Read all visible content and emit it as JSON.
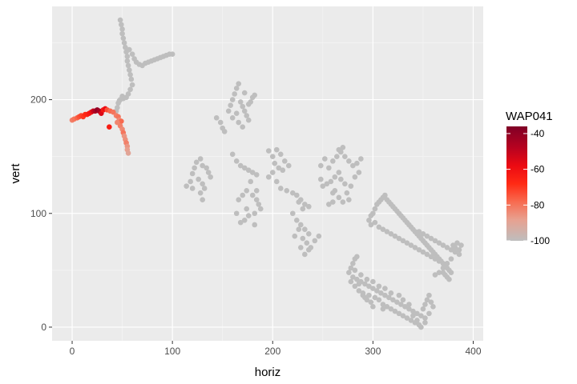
{
  "chart_data": {
    "type": "scatter",
    "xlabel": "horiz",
    "ylabel": "vert",
    "xlim": [
      -20,
      410
    ],
    "ylim": [
      -12,
      282
    ],
    "x_ticks": [
      0,
      100,
      200,
      300,
      400
    ],
    "y_ticks": [
      0,
      100,
      200
    ],
    "x_tick_labels": [
      "0",
      "100",
      "200",
      "300",
      "400"
    ],
    "y_tick_labels": [
      "0",
      "100",
      "200"
    ],
    "grid": true,
    "legend": {
      "title": "WAP041",
      "position": "right",
      "min": -100,
      "max": -36,
      "ticks": [
        -40,
        -60,
        -80,
        -100
      ],
      "tick_labels": [
        "-40",
        "-60",
        "-80",
        "-100"
      ],
      "gradient": [
        {
          "value": -100,
          "color": "#bebebe"
        },
        {
          "value": -88,
          "color": "#e8a08f"
        },
        {
          "value": -78,
          "color": "#f86a4f"
        },
        {
          "value": -68,
          "color": "#ff2a14"
        },
        {
          "value": -58,
          "color": "#ec0a12"
        },
        {
          "value": -48,
          "color": "#b80220"
        },
        {
          "value": -36,
          "color": "#800026"
        }
      ]
    },
    "colors": {
      "panel": "#ebebeb",
      "grid_major": "#ffffff",
      "grid_minor": "#f5f5f5",
      "missing_point": "#bebebe"
    },
    "signal_points": [
      {
        "x": 0,
        "y": 182,
        "value": -82
      },
      {
        "x": 2,
        "y": 183,
        "value": -80
      },
      {
        "x": 5,
        "y": 184,
        "value": -77
      },
      {
        "x": 7,
        "y": 185,
        "value": -74
      },
      {
        "x": 9,
        "y": 186,
        "value": -72
      },
      {
        "x": 11,
        "y": 185,
        "value": -70
      },
      {
        "x": 13,
        "y": 187,
        "value": -68
      },
      {
        "x": 15,
        "y": 187,
        "value": -66
      },
      {
        "x": 17,
        "y": 188,
        "value": -63
      },
      {
        "x": 19,
        "y": 189,
        "value": -60
      },
      {
        "x": 21,
        "y": 190,
        "value": -52
      },
      {
        "x": 23,
        "y": 190,
        "value": -46
      },
      {
        "x": 25,
        "y": 191,
        "value": -40
      },
      {
        "x": 27,
        "y": 190,
        "value": -44
      },
      {
        "x": 29,
        "y": 188,
        "value": -55
      },
      {
        "x": 31,
        "y": 191,
        "value": -62
      },
      {
        "x": 33,
        "y": 192,
        "value": -58
      },
      {
        "x": 35,
        "y": 191,
        "value": -74
      },
      {
        "x": 38,
        "y": 190,
        "value": -78
      },
      {
        "x": 41,
        "y": 189,
        "value": -80
      },
      {
        "x": 37,
        "y": 176,
        "value": -64
      },
      {
        "x": 44,
        "y": 186,
        "value": -82
      },
      {
        "x": 46,
        "y": 185,
        "value": -80
      },
      {
        "x": 47,
        "y": 182,
        "value": -84
      },
      {
        "x": 49,
        "y": 181,
        "value": -78
      },
      {
        "x": 45,
        "y": 180,
        "value": -83
      },
      {
        "x": 48,
        "y": 177,
        "value": -82
      },
      {
        "x": 50,
        "y": 174,
        "value": -84
      },
      {
        "x": 51,
        "y": 171,
        "value": -80
      },
      {
        "x": 52,
        "y": 168,
        "value": -86
      },
      {
        "x": 53,
        "y": 165,
        "value": -85
      },
      {
        "x": 54,
        "y": 162,
        "value": -82
      },
      {
        "x": 55,
        "y": 159,
        "value": -86
      },
      {
        "x": 55,
        "y": 156,
        "value": -88
      },
      {
        "x": 56,
        "y": 153,
        "value": -90
      }
    ],
    "missing_points": [
      [
        48,
        270
      ],
      [
        49,
        266
      ],
      [
        50,
        262
      ],
      [
        50,
        258
      ],
      [
        51,
        254
      ],
      [
        52,
        250
      ],
      [
        53,
        246
      ],
      [
        54,
        242
      ],
      [
        55,
        238
      ],
      [
        55,
        234
      ],
      [
        56,
        230
      ],
      [
        57,
        226
      ],
      [
        58,
        222
      ],
      [
        59,
        218
      ],
      [
        57,
        244
      ],
      [
        60,
        240
      ],
      [
        62,
        236
      ],
      [
        64,
        233
      ],
      [
        67,
        231
      ],
      [
        70,
        230
      ],
      [
        73,
        232
      ],
      [
        76,
        233
      ],
      [
        79,
        234
      ],
      [
        82,
        235
      ],
      [
        85,
        236
      ],
      [
        88,
        237
      ],
      [
        91,
        238
      ],
      [
        94,
        239
      ],
      [
        97,
        240
      ],
      [
        100,
        240
      ],
      [
        60,
        213
      ],
      [
        58,
        209
      ],
      [
        56,
        205
      ],
      [
        54,
        202
      ],
      [
        51,
        201
      ],
      [
        48,
        200
      ],
      [
        46,
        197
      ],
      [
        45,
        193
      ],
      [
        44,
        190
      ],
      [
        47,
        199
      ],
      [
        50,
        203
      ],
      [
        144,
        184
      ],
      [
        148,
        180
      ],
      [
        150,
        175
      ],
      [
        152,
        172
      ],
      [
        156,
        190
      ],
      [
        158,
        195
      ],
      [
        160,
        200
      ],
      [
        162,
        205
      ],
      [
        164,
        210
      ],
      [
        166,
        214
      ],
      [
        168,
        198
      ],
      [
        170,
        194
      ],
      [
        172,
        190
      ],
      [
        174,
        186
      ],
      [
        176,
        182
      ],
      [
        178,
        198
      ],
      [
        180,
        202
      ],
      [
        182,
        204
      ],
      [
        166,
        180
      ],
      [
        170,
        176
      ],
      [
        164,
        188
      ],
      [
        160,
        184
      ],
      [
        172,
        206
      ],
      [
        176,
        196
      ],
      [
        120,
        135
      ],
      [
        122,
        140
      ],
      [
        124,
        145
      ],
      [
        128,
        148
      ],
      [
        130,
        142
      ],
      [
        134,
        140
      ],
      [
        136,
        136
      ],
      [
        138,
        132
      ],
      [
        126,
        130
      ],
      [
        130,
        126
      ],
      [
        132,
        122
      ],
      [
        128,
        118
      ],
      [
        118,
        128
      ],
      [
        114,
        124
      ],
      [
        120,
        122
      ],
      [
        130,
        112
      ],
      [
        160,
        152
      ],
      [
        164,
        146
      ],
      [
        168,
        142
      ],
      [
        172,
        140
      ],
      [
        176,
        138
      ],
      [
        180,
        136
      ],
      [
        184,
        134
      ],
      [
        178,
        128
      ],
      [
        174,
        120
      ],
      [
        170,
        116
      ],
      [
        166,
        112
      ],
      [
        180,
        116
      ],
      [
        184,
        112
      ],
      [
        186,
        108
      ],
      [
        188,
        104
      ],
      [
        182,
        100
      ],
      [
        176,
        98
      ],
      [
        172,
        94
      ],
      [
        168,
        92
      ],
      [
        174,
        104
      ],
      [
        164,
        100
      ],
      [
        184,
        120
      ],
      [
        182,
        90
      ],
      [
        196,
        155
      ],
      [
        200,
        150
      ],
      [
        204,
        156
      ],
      [
        208,
        152
      ],
      [
        212,
        146
      ],
      [
        216,
        142
      ],
      [
        202,
        144
      ],
      [
        206,
        140
      ],
      [
        210,
        138
      ],
      [
        200,
        136
      ],
      [
        196,
        132
      ],
      [
        204,
        128
      ],
      [
        208,
        122
      ],
      [
        214,
        120
      ],
      [
        220,
        118
      ],
      [
        224,
        116
      ],
      [
        228,
        112
      ],
      [
        232,
        108
      ],
      [
        236,
        106
      ],
      [
        230,
        104
      ],
      [
        226,
        110
      ],
      [
        220,
        100
      ],
      [
        224,
        94
      ],
      [
        228,
        90
      ],
      [
        232,
        86
      ],
      [
        236,
        82
      ],
      [
        226,
        86
      ],
      [
        230,
        78
      ],
      [
        234,
        74
      ],
      [
        238,
        70
      ],
      [
        242,
        76
      ],
      [
        246,
        80
      ],
      [
        222,
        80
      ],
      [
        228,
        70
      ],
      [
        232,
        64
      ],
      [
        236,
        68
      ],
      [
        256,
        140
      ],
      [
        260,
        146
      ],
      [
        264,
        150
      ],
      [
        268,
        154
      ],
      [
        272,
        150
      ],
      [
        276,
        146
      ],
      [
        280,
        142
      ],
      [
        284,
        144
      ],
      [
        288,
        148
      ],
      [
        266,
        136
      ],
      [
        262,
        132
      ],
      [
        258,
        128
      ],
      [
        254,
        126
      ],
      [
        250,
        124
      ],
      [
        248,
        130
      ],
      [
        262,
        120
      ],
      [
        266,
        114
      ],
      [
        270,
        110
      ],
      [
        274,
        118
      ],
      [
        278,
        124
      ],
      [
        272,
        126
      ],
      [
        268,
        130
      ],
      [
        282,
        132
      ],
      [
        286,
        136
      ],
      [
        266,
        156
      ],
      [
        270,
        158
      ],
      [
        260,
        110
      ],
      [
        276,
        112
      ],
      [
        256,
        108
      ],
      [
        260,
        118
      ],
      [
        252,
        148
      ],
      [
        248,
        142
      ],
      [
        296,
        94
      ],
      [
        298,
        98
      ],
      [
        300,
        100
      ],
      [
        302,
        104
      ],
      [
        304,
        108
      ],
      [
        306,
        110
      ],
      [
        308,
        112
      ],
      [
        310,
        114
      ],
      [
        312,
        116
      ],
      [
        314,
        112
      ],
      [
        316,
        110
      ],
      [
        318,
        108
      ],
      [
        320,
        106
      ],
      [
        322,
        104
      ],
      [
        324,
        102
      ],
      [
        326,
        100
      ],
      [
        328,
        98
      ],
      [
        330,
        96
      ],
      [
        332,
        94
      ],
      [
        334,
        92
      ],
      [
        336,
        90
      ],
      [
        338,
        88
      ],
      [
        340,
        86
      ],
      [
        342,
        84
      ],
      [
        344,
        82
      ],
      [
        346,
        80
      ],
      [
        348,
        78
      ],
      [
        350,
        76
      ],
      [
        352,
        74
      ],
      [
        354,
        72
      ],
      [
        356,
        70
      ],
      [
        358,
        68
      ],
      [
        360,
        66
      ],
      [
        362,
        64
      ],
      [
        364,
        62
      ],
      [
        366,
        60
      ],
      [
        368,
        58
      ],
      [
        370,
        56
      ],
      [
        372,
        54
      ],
      [
        374,
        52
      ],
      [
        376,
        50
      ],
      [
        378,
        48
      ],
      [
        380,
        72
      ],
      [
        382,
        70
      ],
      [
        384,
        74
      ],
      [
        386,
        68
      ],
      [
        388,
        72
      ],
      [
        298,
        90
      ],
      [
        302,
        92
      ],
      [
        306,
        88
      ],
      [
        310,
        86
      ],
      [
        314,
        84
      ],
      [
        318,
        82
      ],
      [
        322,
        80
      ],
      [
        326,
        78
      ],
      [
        330,
        76
      ],
      [
        334,
        74
      ],
      [
        338,
        72
      ],
      [
        342,
        70
      ],
      [
        346,
        68
      ],
      [
        350,
        66
      ],
      [
        354,
        64
      ],
      [
        358,
        62
      ],
      [
        362,
        60
      ],
      [
        366,
        58
      ],
      [
        370,
        48
      ],
      [
        372,
        46
      ],
      [
        374,
        44
      ],
      [
        376,
        42
      ],
      [
        346,
        84
      ],
      [
        350,
        82
      ],
      [
        354,
        80
      ],
      [
        358,
        78
      ],
      [
        362,
        76
      ],
      [
        366,
        74
      ],
      [
        370,
        72
      ],
      [
        374,
        70
      ],
      [
        378,
        68
      ],
      [
        382,
        66
      ],
      [
        386,
        64
      ],
      [
        378,
        60
      ],
      [
        374,
        56
      ],
      [
        370,
        52
      ],
      [
        366,
        48
      ],
      [
        362,
        46
      ],
      [
        276,
        48
      ],
      [
        278,
        52
      ],
      [
        280,
        56
      ],
      [
        282,
        60
      ],
      [
        284,
        62
      ],
      [
        280,
        44
      ],
      [
        284,
        42
      ],
      [
        288,
        40
      ],
      [
        292,
        38
      ],
      [
        296,
        36
      ],
      [
        300,
        34
      ],
      [
        304,
        32
      ],
      [
        308,
        30
      ],
      [
        312,
        28
      ],
      [
        316,
        26
      ],
      [
        320,
        24
      ],
      [
        324,
        22
      ],
      [
        328,
        20
      ],
      [
        332,
        18
      ],
      [
        336,
        16
      ],
      [
        340,
        14
      ],
      [
        344,
        12
      ],
      [
        348,
        10
      ],
      [
        352,
        8
      ],
      [
        278,
        40
      ],
      [
        282,
        36
      ],
      [
        286,
        32
      ],
      [
        290,
        28
      ],
      [
        294,
        24
      ],
      [
        298,
        22
      ],
      [
        302,
        26
      ],
      [
        306,
        24
      ],
      [
        310,
        20
      ],
      [
        314,
        18
      ],
      [
        318,
        16
      ],
      [
        322,
        14
      ],
      [
        326,
        12
      ],
      [
        330,
        10
      ],
      [
        334,
        8
      ],
      [
        338,
        6
      ],
      [
        342,
        4
      ],
      [
        346,
        2
      ],
      [
        348,
        0
      ],
      [
        350,
        16
      ],
      [
        352,
        20
      ],
      [
        354,
        24
      ],
      [
        356,
        28
      ],
      [
        358,
        22
      ],
      [
        360,
        18
      ],
      [
        356,
        12
      ],
      [
        352,
        4
      ],
      [
        344,
        6
      ],
      [
        340,
        10
      ],
      [
        336,
        20
      ],
      [
        330,
        24
      ],
      [
        326,
        28
      ],
      [
        318,
        30
      ],
      [
        312,
        34
      ],
      [
        306,
        36
      ],
      [
        300,
        40
      ],
      [
        294,
        42
      ],
      [
        288,
        46
      ],
      [
        282,
        50
      ],
      [
        290,
        30
      ],
      [
        292,
        26
      ],
      [
        296,
        28
      ],
      [
        286,
        38
      ],
      [
        310,
        16
      ],
      [
        300,
        18
      ]
    ]
  }
}
